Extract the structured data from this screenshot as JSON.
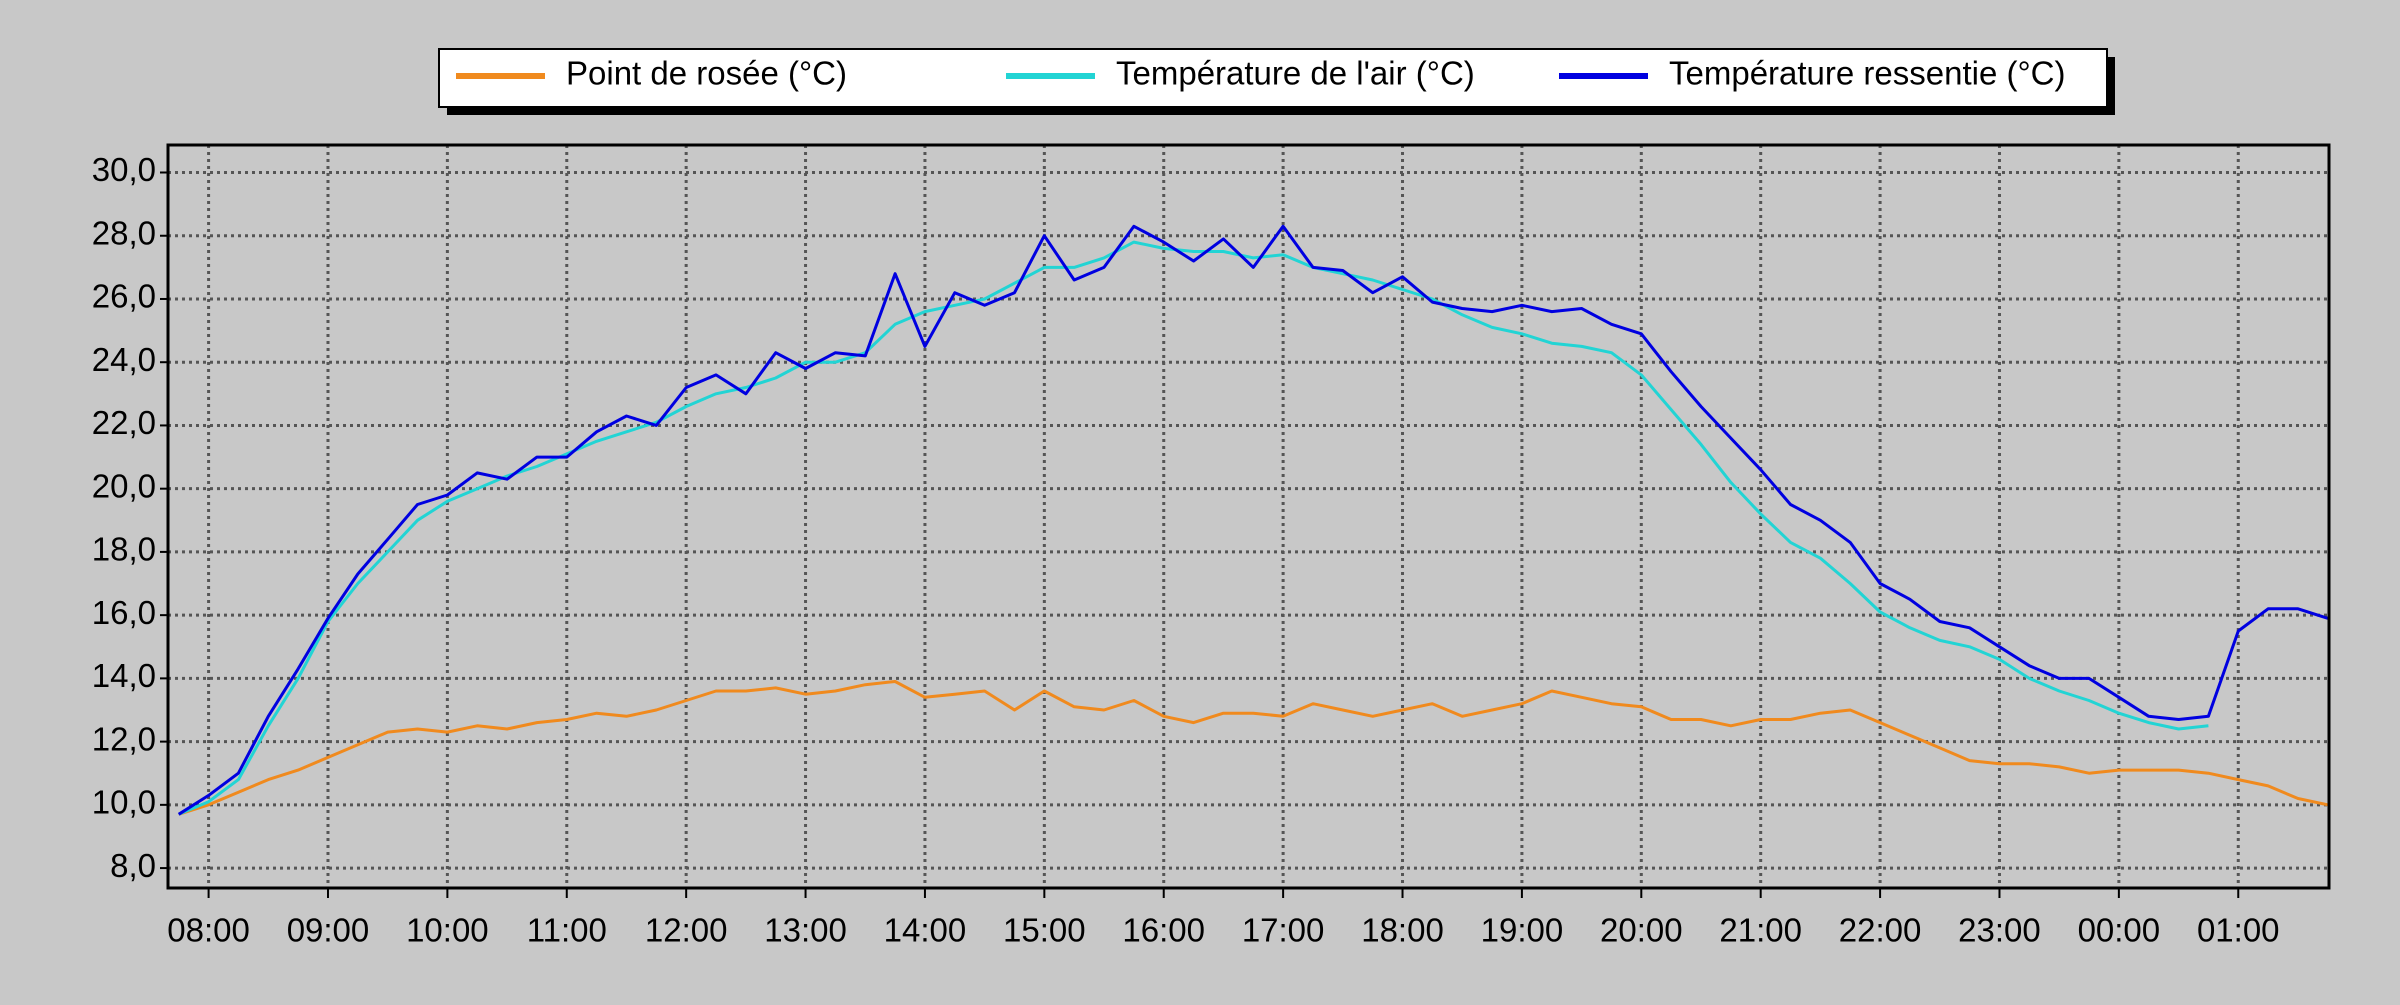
{
  "chart_data": {
    "type": "line",
    "x": [
      7.75,
      8,
      8.25,
      8.5,
      8.75,
      9,
      9.25,
      9.5,
      9.75,
      10,
      10.25,
      10.5,
      10.75,
      11,
      11.25,
      11.5,
      11.75,
      12,
      12.25,
      12.5,
      12.75,
      13,
      13.25,
      13.5,
      13.75,
      14,
      14.25,
      14.5,
      14.75,
      15,
      15.25,
      15.5,
      15.75,
      16,
      16.25,
      16.5,
      16.75,
      17,
      17.25,
      17.5,
      17.75,
      18,
      18.25,
      18.5,
      18.75,
      19,
      19.25,
      19.5,
      19.75,
      20,
      20.25,
      20.5,
      20.75,
      21,
      21.25,
      21.5,
      21.75,
      22,
      22.25,
      22.5,
      22.75,
      23,
      23.25,
      23.5,
      23.75,
      24,
      24.25,
      24.5,
      24.75,
      25,
      25.25,
      25.5,
      25.75
    ],
    "series": [
      {
        "name": "Point de rosée (°C)",
        "color": "#f08a1e",
        "values": [
          9.7,
          10.0,
          10.4,
          10.8,
          11.1,
          11.5,
          11.9,
          12.3,
          12.4,
          12.3,
          12.5,
          12.4,
          12.6,
          12.7,
          12.9,
          12.8,
          13.0,
          13.3,
          13.6,
          13.6,
          13.7,
          13.5,
          13.6,
          13.8,
          13.9,
          13.4,
          13.5,
          13.6,
          13.0,
          13.6,
          13.1,
          13.0,
          13.3,
          12.8,
          12.6,
          12.9,
          12.9,
          12.8,
          13.2,
          13.0,
          12.8,
          13.0,
          13.2,
          12.8,
          13.0,
          13.2,
          13.6,
          13.4,
          13.2,
          13.1,
          12.7,
          12.7,
          12.5,
          12.7,
          12.7,
          12.9,
          13.0,
          12.6,
          12.2,
          11.8,
          11.4,
          11.3,
          11.3,
          11.2,
          11.0,
          11.1,
          11.1,
          11.1,
          11.0,
          10.8,
          10.6,
          10.2,
          10.0
        ]
      },
      {
        "name": "Température de l'air (°C)",
        "color": "#22d4d4",
        "values": [
          9.7,
          10.1,
          10.8,
          12.5,
          14.0,
          15.8,
          17.0,
          18.0,
          19.0,
          19.6,
          20.0,
          20.4,
          20.7,
          21.1,
          21.5,
          21.8,
          22.1,
          22.6,
          23.0,
          23.2,
          23.5,
          24.0,
          24.0,
          24.3,
          25.2,
          25.6,
          25.8,
          26.0,
          26.5,
          27.0,
          27.0,
          27.3,
          27.8,
          27.6,
          27.5,
          27.5,
          27.3,
          27.4,
          27.0,
          26.8,
          26.6,
          26.3,
          26.0,
          25.5,
          25.1,
          24.9,
          24.6,
          24.5,
          24.3,
          23.6,
          22.5,
          21.4,
          20.2,
          19.2,
          18.3,
          17.8,
          17.0,
          16.1,
          15.6,
          15.2,
          15.0,
          14.6,
          14.0,
          13.6,
          13.3,
          12.9,
          12.6,
          12.4,
          12.5,
          null,
          null,
          null,
          null
        ]
      },
      {
        "name": "Température ressentie (°C)",
        "color": "#0000e0",
        "values": [
          9.7,
          10.3,
          11.0,
          12.8,
          14.3,
          15.9,
          17.3,
          18.4,
          19.5,
          19.8,
          20.5,
          20.3,
          21.0,
          21.0,
          21.8,
          22.3,
          22.0,
          23.2,
          23.6,
          23.0,
          24.3,
          23.8,
          24.3,
          24.2,
          26.8,
          24.5,
          26.2,
          25.8,
          26.2,
          28.0,
          26.6,
          27.0,
          28.3,
          27.8,
          27.2,
          27.9,
          27.0,
          28.3,
          27.0,
          26.9,
          26.2,
          26.7,
          25.9,
          25.7,
          25.6,
          25.8,
          25.6,
          25.7,
          25.2,
          24.9,
          23.7,
          22.6,
          21.6,
          20.6,
          19.5,
          19.0,
          18.3,
          17.0,
          16.5,
          15.8,
          15.6,
          15.0,
          14.4,
          14.0,
          14.0,
          13.4,
          12.8,
          12.7,
          12.8,
          15.5,
          16.2,
          16.2,
          15.9
        ]
      }
    ],
    "xlim": [
      7.66,
      25.76
    ],
    "xticks": [
      {
        "value": 8,
        "label": "08:00"
      },
      {
        "value": 9,
        "label": "09:00"
      },
      {
        "value": 10,
        "label": "10:00"
      },
      {
        "value": 11,
        "label": "11:00"
      },
      {
        "value": 12,
        "label": "12:00"
      },
      {
        "value": 13,
        "label": "13:00"
      },
      {
        "value": 14,
        "label": "14:00"
      },
      {
        "value": 15,
        "label": "15:00"
      },
      {
        "value": 16,
        "label": "16:00"
      },
      {
        "value": 17,
        "label": "17:00"
      },
      {
        "value": 18,
        "label": "18:00"
      },
      {
        "value": 19,
        "label": "19:00"
      },
      {
        "value": 20,
        "label": "20:00"
      },
      {
        "value": 21,
        "label": "21:00"
      },
      {
        "value": 22,
        "label": "22:00"
      },
      {
        "value": 23,
        "label": "23:00"
      },
      {
        "value": 24,
        "label": "00:00"
      },
      {
        "value": 25,
        "label": "01:00"
      }
    ],
    "ylim": [
      7.37,
      30.87
    ],
    "yticks": [
      {
        "value": 8,
        "label": "8,0"
      },
      {
        "value": 10,
        "label": "10,0"
      },
      {
        "value": 12,
        "label": "12,0"
      },
      {
        "value": 14,
        "label": "14,0"
      },
      {
        "value": 16,
        "label": "16,0"
      },
      {
        "value": 18,
        "label": "18,0"
      },
      {
        "value": 20,
        "label": "20,0"
      },
      {
        "value": 22,
        "label": "22,0"
      },
      {
        "value": 24,
        "label": "24,0"
      },
      {
        "value": 26,
        "label": "26,0"
      },
      {
        "value": 28,
        "label": "28,0"
      },
      {
        "value": 30,
        "label": "30,0"
      }
    ],
    "grid": true,
    "legend": "top"
  }
}
